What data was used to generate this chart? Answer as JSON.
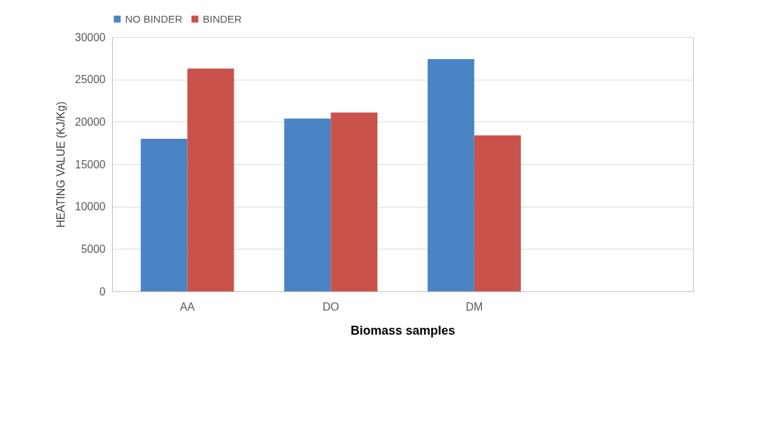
{
  "chart_data": {
    "type": "bar",
    "xlabel": "Biomass samples",
    "ylabel": "HEATING VALUE (KJ/Kg)",
    "categories": [
      "AA",
      "DO",
      "DM",
      null
    ],
    "series": [
      {
        "name": "NO BINDER",
        "color": "#4a84c4",
        "values": [
          18000,
          20400,
          27400,
          null
        ]
      },
      {
        "name": "BINDER",
        "color": "#c9524a",
        "values": [
          26300,
          21100,
          18400,
          null
        ]
      }
    ],
    "ylim": [
      0,
      30000
    ],
    "yticks": [
      0,
      5000,
      10000,
      15000,
      20000,
      25000,
      30000
    ],
    "grid": "y",
    "legend": "top"
  }
}
